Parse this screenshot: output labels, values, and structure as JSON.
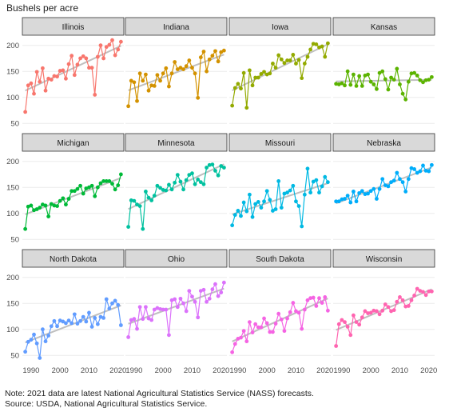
{
  "chart_data": {
    "type": "line",
    "ylabel": "Bushels per acre",
    "x_ticks": [
      1990,
      2000,
      2010,
      2020
    ],
    "y_ticks": [
      50,
      100,
      150,
      200
    ],
    "xlim": [
      1987,
      2022
    ],
    "ylim": [
      38,
      218
    ],
    "x": [
      1988,
      1989,
      1990,
      1991,
      1992,
      1993,
      1994,
      1995,
      1996,
      1997,
      1998,
      1999,
      2000,
      2001,
      2002,
      2003,
      2004,
      2005,
      2006,
      2007,
      2008,
      2009,
      2010,
      2011,
      2012,
      2013,
      2014,
      2015,
      2016,
      2017,
      2018,
      2019,
      2020,
      2021
    ],
    "trend_color": "#bfbfbf",
    "panels": [
      {
        "name": "Illinois",
        "color": "#f8766d",
        "values": [
          72,
          123,
          127,
          107,
          149,
          130,
          156,
          113,
          136,
          134,
          141,
          140,
          151,
          152,
          136,
          164,
          180,
          143,
          163,
          175,
          179,
          175,
          157,
          157,
          105,
          178,
          200,
          175,
          197,
          201,
          210,
          181,
          192,
          207
        ]
      },
      {
        "name": "Indiana",
        "color": "#d39200",
        "values": [
          83,
          132,
          129,
          93,
          146,
          132,
          144,
          113,
          123,
          122,
          143,
          132,
          146,
          156,
          121,
          146,
          168,
          154,
          157,
          154,
          160,
          171,
          157,
          146,
          99,
          177,
          188,
          150,
          173,
          180,
          189,
          169,
          187,
          190
        ]
      },
      {
        "name": "Iowa",
        "color": "#93aa00",
        "values": [
          84,
          118,
          126,
          117,
          147,
          80,
          152,
          123,
          138,
          138,
          145,
          149,
          144,
          146,
          165,
          157,
          181,
          173,
          166,
          171,
          171,
          182,
          165,
          172,
          137,
          165,
          178,
          192,
          203,
          202,
          196,
          198,
          178,
          204
        ]
      },
      {
        "name": "Kansas",
        "color": "#5bb300",
        "values": [
          126,
          125,
          127,
          123,
          150,
          124,
          144,
          122,
          141,
          122,
          142,
          144,
          130,
          125,
          116,
          147,
          150,
          135,
          115,
          138,
          134,
          155,
          125,
          107,
          96,
          130,
          146,
          147,
          142,
          133,
          129,
          133,
          134,
          139
        ]
      },
      {
        "name": "Michigan",
        "color": "#00ba38",
        "values": [
          70,
          113,
          115,
          106,
          108,
          111,
          117,
          115,
          94,
          118,
          115,
          114,
          124,
          129,
          117,
          128,
          143,
          143,
          147,
          153,
          138,
          148,
          150,
          153,
          133,
          150,
          158,
          162,
          162,
          162,
          157,
          146,
          154,
          175
        ]
      },
      {
        "name": "Minnesota",
        "color": "#00c19f",
        "values": [
          74,
          125,
          124,
          117,
          114,
          70,
          142,
          130,
          125,
          134,
          153,
          149,
          145,
          144,
          155,
          146,
          159,
          174,
          161,
          146,
          164,
          174,
          177,
          156,
          165,
          160,
          156,
          188,
          193,
          194,
          182,
          173,
          191,
          188
        ]
      },
      {
        "name": "Missouri",
        "color": "#00b9e3",
        "values": [
          77,
          97,
          105,
          95,
          121,
          104,
          136,
          93,
          118,
          122,
          111,
          123,
          143,
          126,
          105,
          108,
          162,
          111,
          138,
          140,
          144,
          153,
          123,
          114,
          75,
          136,
          186,
          140,
          161,
          164,
          140,
          152,
          170,
          160
        ]
      },
      {
        "name": "Nebraska",
        "color": "#00adfa",
        "values": [
          123,
          123,
          127,
          128,
          134,
          121,
          142,
          123,
          139,
          143,
          137,
          138,
          143,
          147,
          128,
          147,
          166,
          154,
          152,
          160,
          163,
          178,
          166,
          160,
          142,
          166,
          187,
          185,
          178,
          181,
          192,
          182,
          181,
          193
        ]
      },
      {
        "name": "North Dakota",
        "color": "#619cff",
        "values": [
          57,
          76,
          80,
          90,
          73,
          45,
          100,
          77,
          88,
          106,
          116,
          106,
          117,
          115,
          112,
          117,
          112,
          129,
          111,
          116,
          124,
          115,
          132,
          105,
          122,
          110,
          124,
          122,
          158,
          140,
          150,
          155,
          147,
          108
        ]
      },
      {
        "name": "Ohio",
        "color": "#db72fb",
        "values": [
          85,
          118,
          120,
          101,
          143,
          120,
          143,
          121,
          118,
          138,
          141,
          139,
          138,
          138,
          89,
          156,
          158,
          143,
          159,
          150,
          135,
          174,
          163,
          153,
          123,
          174,
          176,
          153,
          159,
          177,
          187,
          164,
          171,
          190
        ]
      },
      {
        "name": "South Dakota",
        "color": "#f564e3",
        "values": [
          56,
          72,
          82,
          84,
          97,
          77,
          114,
          94,
          110,
          104,
          104,
          121,
          112,
          95,
          95,
          111,
          130,
          119,
          97,
          121,
          133,
          151,
          135,
          132,
          101,
          138,
          156,
          160,
          161,
          145,
          160,
          151,
          162,
          136
        ]
      },
      {
        "name": "Wisconsin",
        "color": "#ff64b0",
        "values": [
          68,
          110,
          118,
          114,
          105,
          89,
          127,
          114,
          109,
          123,
          135,
          131,
          132,
          136,
          135,
          129,
          136,
          148,
          143,
          135,
          137,
          153,
          162,
          156,
          144,
          145,
          156,
          165,
          178,
          174,
          172,
          166,
          173,
          173
        ]
      }
    ]
  },
  "notes": [
    "Note: 2021 data are latest National Agricultural Statistics Service (NASS) forecasts.",
    "Source: USDA, National Agricultural Statistics Service."
  ]
}
